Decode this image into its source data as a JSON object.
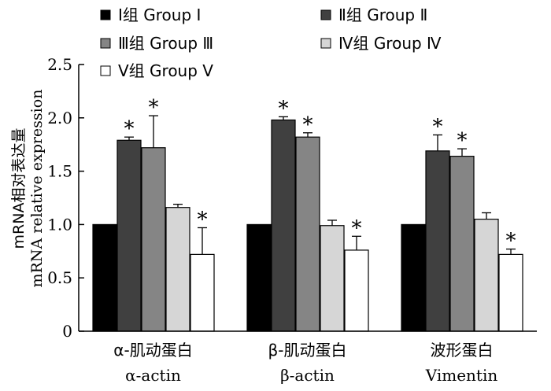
{
  "chart_data": {
    "type": "bar",
    "ylabel_lines": [
      "mRNA相对表达量",
      "mRNA relative expression"
    ],
    "ylim": [
      0,
      2.5
    ],
    "yticks": [
      "0",
      "0.5",
      "1.0",
      "1.5",
      "2.0",
      "2.5"
    ],
    "ytick_values": [
      0,
      0.5,
      1.0,
      1.5,
      2.0,
      2.5
    ],
    "categories": [
      {
        "zh": "α-肌动蛋白",
        "en": "α-actin"
      },
      {
        "zh": "β-肌动蛋白",
        "en": "β-actin"
      },
      {
        "zh": "波形蛋白",
        "en": "Vimentin"
      }
    ],
    "series": [
      {
        "name": "Ⅰ组  Group Ⅰ",
        "color": "#000000",
        "values": [
          1.0,
          1.0,
          1.0
        ],
        "errors": [
          0,
          0,
          0
        ],
        "significant": [
          false,
          false,
          false
        ]
      },
      {
        "name": "Ⅱ组  Group Ⅱ",
        "color": "#404040",
        "values": [
          1.79,
          1.98,
          1.69
        ],
        "errors": [
          0.03,
          0.03,
          0.15
        ],
        "significant": [
          true,
          true,
          true
        ]
      },
      {
        "name": "Ⅲ组  Group Ⅲ",
        "color": "#858585",
        "values": [
          1.72,
          1.82,
          1.64
        ],
        "errors": [
          0.3,
          0.04,
          0.07
        ],
        "significant": [
          true,
          true,
          true
        ]
      },
      {
        "name": "Ⅳ组  Group Ⅳ",
        "color": "#d6d6d6",
        "values": [
          1.16,
          0.99,
          1.05
        ],
        "errors": [
          0.03,
          0.05,
          0.06
        ],
        "significant": [
          false,
          false,
          false
        ]
      },
      {
        "name": "Ⅴ组  Group Ⅴ",
        "color": "#ffffff",
        "values": [
          0.72,
          0.76,
          0.72
        ],
        "errors": [
          0.25,
          0.13,
          0.05
        ],
        "significant": [
          true,
          true,
          true
        ]
      }
    ],
    "significance_marker": "*",
    "legend_position": "top"
  }
}
